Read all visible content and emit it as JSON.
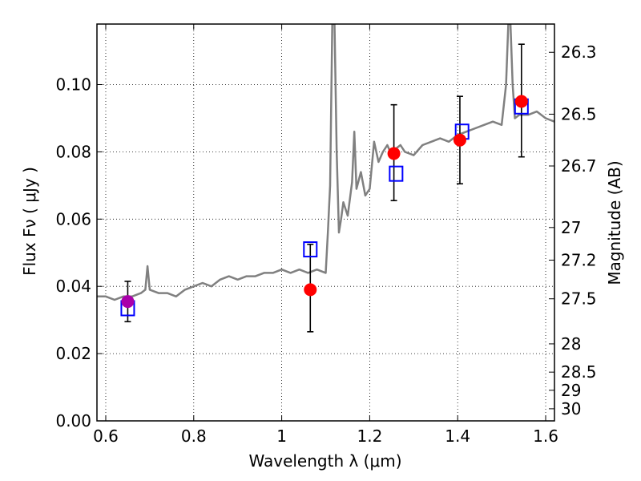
{
  "chart_data": {
    "type": "scatter",
    "xlabel": "Wavelength  λ (μm)",
    "ylabel": "Flux  Fν  ( μJy )",
    "ylabel_right": "Magnitude (AB)",
    "xlim": [
      0.58,
      1.62
    ],
    "ylim": [
      0.0,
      0.118
    ],
    "grid": true,
    "x_ticks": [
      0.6,
      0.8,
      1.0,
      1.2,
      1.4,
      1.6
    ],
    "x_tick_labels": [
      "0.6",
      "0.8",
      "1",
      "1.2",
      "1.4",
      "1.6"
    ],
    "y_ticks": [
      0.0,
      0.02,
      0.04,
      0.06,
      0.08,
      0.1
    ],
    "y_tick_labels": [
      "0.00",
      "0.02",
      "0.04",
      "0.06",
      "0.08",
      "0.10"
    ],
    "right_ticks": [
      {
        "label": "26.3",
        "flux": 0.1096
      },
      {
        "label": "26.5",
        "flux": 0.0912
      },
      {
        "label": "26.7",
        "flux": 0.0758
      },
      {
        "label": "27",
        "flux": 0.0575
      },
      {
        "label": "27.2",
        "flux": 0.0478
      },
      {
        "label": "27.5",
        "flux": 0.0363
      },
      {
        "label": "28",
        "flux": 0.0229
      },
      {
        "label": "28.5",
        "flux": 0.0145
      },
      {
        "label": "29",
        "flux": 0.0091
      },
      {
        "label": "30",
        "flux": 0.0036
      }
    ],
    "model_spectrum": {
      "color": "#808080",
      "x": [
        0.58,
        0.6,
        0.62,
        0.64,
        0.66,
        0.68,
        0.69,
        0.695,
        0.7,
        0.72,
        0.74,
        0.76,
        0.78,
        0.8,
        0.82,
        0.84,
        0.86,
        0.88,
        0.9,
        0.92,
        0.94,
        0.96,
        0.98,
        1.0,
        1.02,
        1.04,
        1.06,
        1.08,
        1.1,
        1.105,
        1.11,
        1.115,
        1.12,
        1.125,
        1.13,
        1.135,
        1.14,
        1.15,
        1.16,
        1.165,
        1.17,
        1.18,
        1.19,
        1.2,
        1.21,
        1.22,
        1.23,
        1.24,
        1.25,
        1.26,
        1.27,
        1.28,
        1.3,
        1.32,
        1.34,
        1.36,
        1.38,
        1.4,
        1.42,
        1.44,
        1.46,
        1.48,
        1.5,
        1.51,
        1.515,
        1.52,
        1.525,
        1.53,
        1.54,
        1.56,
        1.58,
        1.6,
        1.62
      ],
      "y": [
        0.037,
        0.037,
        0.036,
        0.037,
        0.037,
        0.038,
        0.039,
        0.046,
        0.039,
        0.038,
        0.038,
        0.037,
        0.039,
        0.04,
        0.041,
        0.04,
        0.042,
        0.043,
        0.042,
        0.043,
        0.043,
        0.044,
        0.044,
        0.045,
        0.044,
        0.045,
        0.044,
        0.045,
        0.044,
        0.056,
        0.07,
        0.118,
        0.118,
        0.08,
        0.056,
        0.06,
        0.065,
        0.061,
        0.071,
        0.086,
        0.069,
        0.074,
        0.067,
        0.069,
        0.083,
        0.077,
        0.08,
        0.082,
        0.079,
        0.081,
        0.082,
        0.08,
        0.079,
        0.082,
        0.083,
        0.084,
        0.083,
        0.085,
        0.086,
        0.087,
        0.088,
        0.089,
        0.088,
        0.1,
        0.118,
        0.118,
        0.1,
        0.09,
        0.091,
        0.091,
        0.092,
        0.09,
        0.089
      ]
    },
    "observed": {
      "color": "#ff0000",
      "points": [
        {
          "x": 1.065,
          "y": 0.039,
          "yerr_low": 0.0265,
          "yerr_high": 0.0525
        },
        {
          "x": 1.255,
          "y": 0.0795,
          "yerr_low": 0.0655,
          "yerr_high": 0.094
        },
        {
          "x": 1.405,
          "y": 0.0835,
          "yerr_low": 0.0705,
          "yerr_high": 0.0965
        },
        {
          "x": 1.545,
          "y": 0.095,
          "yerr_low": 0.0785,
          "yerr_high": 0.112
        }
      ]
    },
    "observed_optical": {
      "color": "#aa00aa",
      "points": [
        {
          "x": 0.65,
          "y": 0.0355,
          "yerr_low": 0.0295,
          "yerr_high": 0.0415
        }
      ]
    },
    "model_bands": {
      "color": "#0000ff",
      "points": [
        {
          "x": 0.65,
          "y": 0.0335
        },
        {
          "x": 1.065,
          "y": 0.051
        },
        {
          "x": 1.26,
          "y": 0.0735
        },
        {
          "x": 1.41,
          "y": 0.086
        },
        {
          "x": 1.545,
          "y": 0.0935
        }
      ]
    }
  }
}
